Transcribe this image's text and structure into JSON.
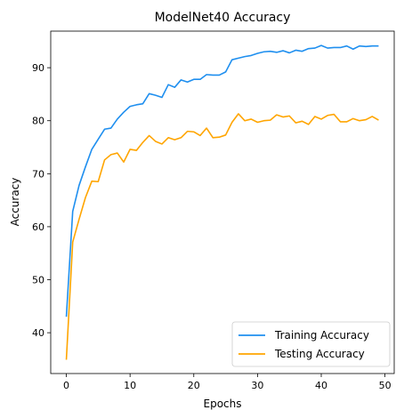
{
  "chart_data": {
    "type": "line",
    "title": "ModelNet40 Accuracy",
    "xlabel": "Epochs",
    "ylabel": "Accuracy",
    "xlim": [
      -2.45,
      51.45
    ],
    "ylim": [
      32.3,
      96.9
    ],
    "xticks": [
      0,
      10,
      20,
      30,
      40,
      50
    ],
    "yticks": [
      40,
      50,
      60,
      70,
      80,
      90
    ],
    "grid": false,
    "legend_position": "lower-right",
    "x": [
      0,
      1,
      2,
      3,
      4,
      5,
      6,
      7,
      8,
      9,
      10,
      11,
      12,
      13,
      14,
      15,
      16,
      17,
      18,
      19,
      20,
      21,
      22,
      23,
      24,
      25,
      26,
      27,
      28,
      29,
      30,
      31,
      32,
      33,
      34,
      35,
      36,
      37,
      38,
      39,
      40,
      41,
      42,
      43,
      44,
      45,
      46,
      47,
      48,
      49
    ],
    "series": [
      {
        "name": "Training Accuracy",
        "color": "#1f8fef",
        "values": [
          43.0,
          62.9,
          67.8,
          71.3,
          74.6,
          76.5,
          78.4,
          78.6,
          80.3,
          81.6,
          82.7,
          83.0,
          83.2,
          85.1,
          84.8,
          84.4,
          86.8,
          86.3,
          87.7,
          87.3,
          87.8,
          87.8,
          88.7,
          88.6,
          88.6,
          89.2,
          91.5,
          91.8,
          92.1,
          92.3,
          92.7,
          93.0,
          93.1,
          92.9,
          93.2,
          92.8,
          93.3,
          93.1,
          93.6,
          93.7,
          94.2,
          93.7,
          93.8,
          93.8,
          94.1,
          93.5,
          94.1,
          94.0,
          94.1,
          94.1
        ]
      },
      {
        "name": "Testing Accuracy",
        "color": "#ffa500",
        "values": [
          34.9,
          57.1,
          61.4,
          65.5,
          68.6,
          68.5,
          72.6,
          73.6,
          73.9,
          72.2,
          74.6,
          74.4,
          75.9,
          77.2,
          76.1,
          75.6,
          76.8,
          76.4,
          76.8,
          78.0,
          77.9,
          77.2,
          78.6,
          76.8,
          76.9,
          77.3,
          79.7,
          81.3,
          80.0,
          80.3,
          79.7,
          80.0,
          80.1,
          81.1,
          80.7,
          80.9,
          79.6,
          79.9,
          79.3,
          80.8,
          80.3,
          81.0,
          81.2,
          79.8,
          79.8,
          80.4,
          80.0,
          80.2,
          80.8,
          80.1
        ]
      }
    ]
  }
}
